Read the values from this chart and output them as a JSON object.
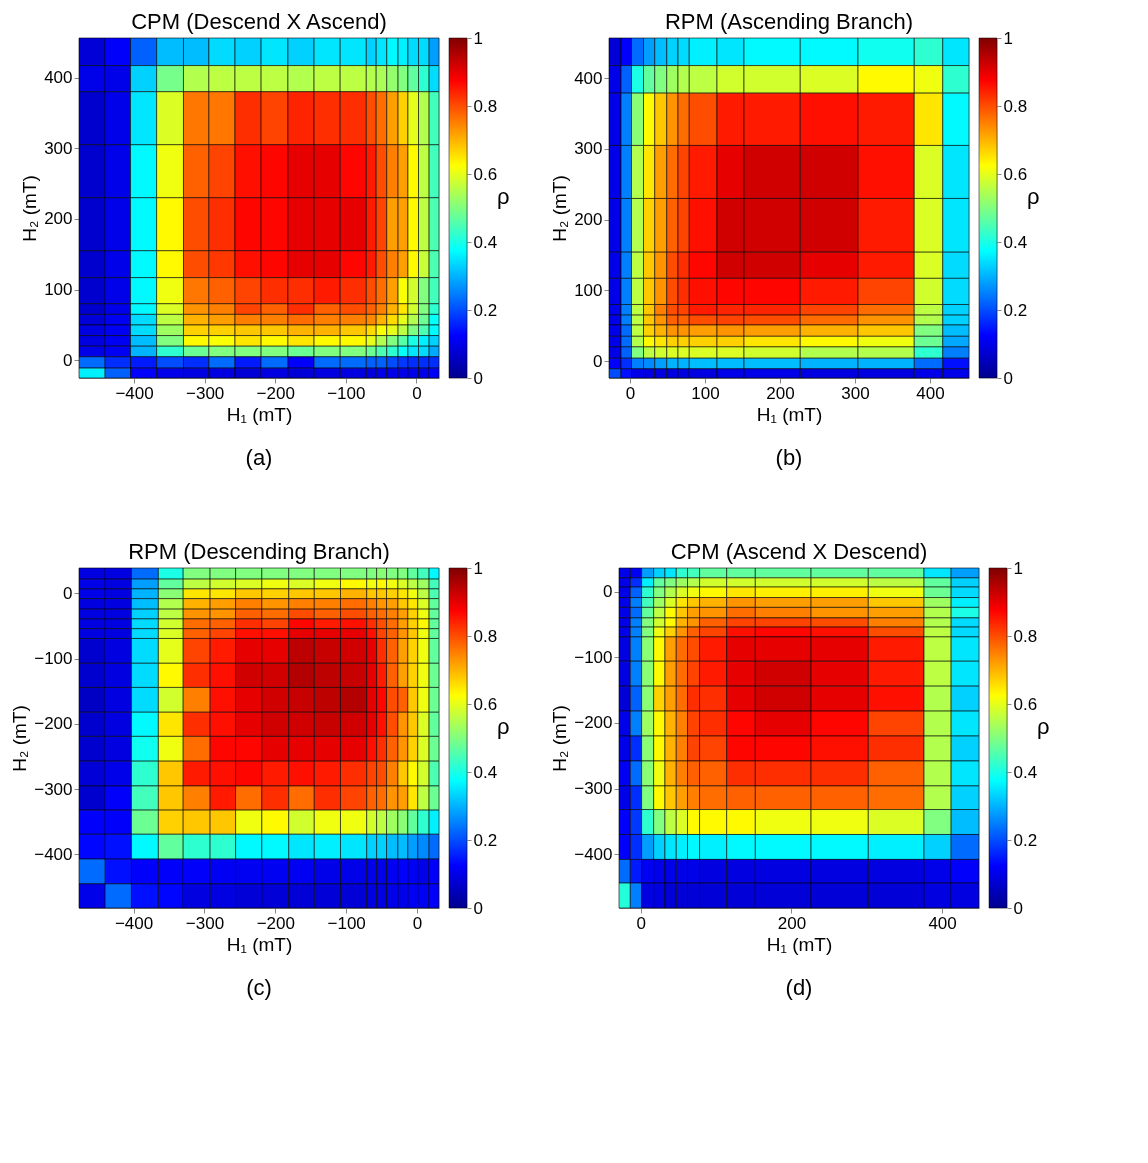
{
  "chart_data": [
    {
      "type": "heatmap",
      "title": "CPM (Descend X Ascend)",
      "xlabel": "H₁ (mT)",
      "ylabel": "H₂ (mT)",
      "clabel": "ρ",
      "annotations": [
        "(a)"
      ],
      "colors": [
        "#00008f",
        "#0000ff",
        "#0080ff",
        "#00ffff",
        "#80ff80",
        "#ffff00",
        "#ff8000",
        "#ff0000",
        "#800000"
      ],
      "clim": [
        0,
        1
      ],
      "cticks": [
        0,
        0.2,
        0.4,
        0.6,
        0.8,
        1
      ],
      "xlim": [
        -478,
        32
      ],
      "xticks": [
        -400,
        -300,
        -200,
        -100,
        0
      ],
      "ylim": [
        -25,
        456
      ],
      "yticks": [
        0,
        100,
        200,
        300,
        400
      ],
      "x": [
        -459.5,
        -423,
        -386.5,
        -349,
        -312,
        -275.5,
        -238.5,
        -201,
        -163.5,
        -126.5,
        -89.5,
        -64,
        -49.5,
        -34,
        -19,
        -4.5,
        10.5,
        25
      ],
      "y": [
        436.5,
        398.5,
        342.5,
        267.5,
        192.5,
        136,
        98.5,
        72.5,
        57.5,
        42.5,
        27.5,
        12.5,
        -3,
        -18
      ],
      "cells": [
        [
          0.08,
          0.12,
          0.22,
          0.31,
          0.31,
          0.34,
          0.33,
          0.35,
          0.33,
          0.35,
          0.35,
          0.33,
          0.35,
          0.37,
          0.36,
          0.34,
          0.34,
          0.28
        ],
        [
          0.1,
          0.1,
          0.33,
          0.49,
          0.55,
          0.56,
          0.56,
          0.56,
          0.55,
          0.56,
          0.56,
          0.55,
          0.54,
          0.52,
          0.5,
          0.47,
          0.42,
          0.34
        ],
        [
          0.07,
          0.1,
          0.35,
          0.59,
          0.76,
          0.76,
          0.83,
          0.81,
          0.84,
          0.83,
          0.83,
          0.8,
          0.77,
          0.72,
          0.67,
          0.6,
          0.55,
          0.44
        ],
        [
          0.07,
          0.1,
          0.37,
          0.61,
          0.78,
          0.81,
          0.86,
          0.87,
          0.9,
          0.9,
          0.87,
          0.85,
          0.8,
          0.75,
          0.72,
          0.63,
          0.56,
          0.44
        ],
        [
          0.07,
          0.1,
          0.37,
          0.63,
          0.8,
          0.83,
          0.87,
          0.87,
          0.9,
          0.9,
          0.9,
          0.85,
          0.81,
          0.72,
          0.72,
          0.63,
          0.56,
          0.45
        ],
        [
          0.07,
          0.1,
          0.37,
          0.63,
          0.8,
          0.82,
          0.86,
          0.87,
          0.9,
          0.9,
          0.87,
          0.85,
          0.8,
          0.75,
          0.72,
          0.63,
          0.57,
          0.45
        ],
        [
          0.07,
          0.1,
          0.37,
          0.61,
          0.76,
          0.78,
          0.81,
          0.83,
          0.83,
          0.85,
          0.83,
          0.8,
          0.77,
          0.72,
          0.62,
          0.58,
          0.5,
          0.44
        ],
        [
          0.07,
          0.1,
          0.37,
          0.59,
          0.73,
          0.75,
          0.81,
          0.78,
          0.83,
          0.78,
          0.8,
          0.78,
          0.75,
          0.7,
          0.65,
          0.58,
          0.5,
          0.42
        ],
        [
          0.08,
          0.11,
          0.34,
          0.56,
          0.7,
          0.72,
          0.75,
          0.75,
          0.77,
          0.75,
          0.75,
          0.74,
          0.7,
          0.66,
          0.6,
          0.55,
          0.48,
          0.38
        ],
        [
          0.09,
          0.11,
          0.34,
          0.53,
          0.67,
          0.67,
          0.68,
          0.68,
          0.7,
          0.7,
          0.68,
          0.66,
          0.62,
          0.6,
          0.56,
          0.5,
          0.45,
          0.37
        ],
        [
          0.09,
          0.11,
          0.31,
          0.5,
          0.63,
          0.62,
          0.65,
          0.63,
          0.65,
          0.63,
          0.63,
          0.6,
          0.55,
          0.5,
          0.46,
          0.4,
          0.36,
          0.33
        ],
        [
          0.1,
          0.11,
          0.3,
          0.42,
          0.48,
          0.5,
          0.5,
          0.5,
          0.48,
          0.5,
          0.5,
          0.48,
          0.45,
          0.42,
          0.38,
          0.35,
          0.34,
          0.29
        ],
        [
          0.23,
          0.17,
          0.15,
          0.2,
          0.17,
          0.23,
          0.15,
          0.23,
          0.12,
          0.23,
          0.23,
          0.22,
          0.22,
          0.2,
          0.18,
          0.17,
          0.17,
          0.17
        ],
        [
          0.36,
          0.22,
          0.12,
          0.1,
          0.09,
          0.09,
          0.08,
          0.09,
          0.08,
          0.09,
          0.09,
          0.09,
          0.1,
          0.1,
          0.1,
          0.1,
          0.1,
          0.12
        ]
      ]
    },
    {
      "type": "heatmap",
      "title": "RPM (Ascending Branch)",
      "xlabel": "H₁ (mT)",
      "ylabel": "H₂ (mT)",
      "clabel": "ρ",
      "annotations": [
        "(b)"
      ],
      "colors": [
        "#00008f",
        "#0000ff",
        "#0080ff",
        "#00ffff",
        "#80ff80",
        "#ffff00",
        "#ff8000",
        "#ff0000",
        "#800000"
      ],
      "clim": [
        0,
        1
      ],
      "cticks": [
        0,
        0.2,
        0.4,
        0.6,
        0.8,
        1
      ],
      "xlim": [
        -28,
        452
      ],
      "xticks": [
        0,
        100,
        200,
        300,
        400
      ],
      "ylim": [
        -24,
        457
      ],
      "yticks": [
        0,
        100,
        200,
        300,
        400
      ],
      "x": [
        -20,
        -5,
        10,
        25.5,
        41,
        56.5,
        71.5,
        97.5,
        134,
        189.5,
        265.5,
        341.5,
        398,
        434.5
      ],
      "y": [
        437.5,
        398.5,
        342,
        267.5,
        192,
        135.5,
        98.5,
        72.5,
        58,
        43,
        27.5,
        12,
        -3.5,
        -17.5
      ],
      "cells": [
        [
          0.08,
          0.12,
          0.23,
          0.28,
          0.31,
          0.33,
          0.34,
          0.36,
          0.35,
          0.37,
          0.37,
          0.39,
          0.42,
          0.35
        ],
        [
          0.1,
          0.22,
          0.4,
          0.47,
          0.5,
          0.53,
          0.55,
          0.56,
          0.58,
          0.58,
          0.59,
          0.63,
          0.61,
          0.42
        ],
        [
          0.1,
          0.25,
          0.51,
          0.63,
          0.68,
          0.73,
          0.77,
          0.8,
          0.85,
          0.85,
          0.86,
          0.85,
          0.65,
          0.37
        ],
        [
          0.1,
          0.25,
          0.55,
          0.65,
          0.72,
          0.77,
          0.81,
          0.85,
          0.9,
          0.92,
          0.92,
          0.86,
          0.59,
          0.35
        ],
        [
          0.1,
          0.25,
          0.55,
          0.67,
          0.72,
          0.78,
          0.81,
          0.86,
          0.92,
          0.92,
          0.92,
          0.85,
          0.59,
          0.35
        ],
        [
          0.1,
          0.25,
          0.56,
          0.68,
          0.73,
          0.8,
          0.83,
          0.87,
          0.92,
          0.92,
          0.9,
          0.85,
          0.59,
          0.34
        ],
        [
          0.1,
          0.25,
          0.56,
          0.68,
          0.73,
          0.8,
          0.83,
          0.86,
          0.87,
          0.87,
          0.85,
          0.81,
          0.58,
          0.34
        ],
        [
          0.1,
          0.25,
          0.56,
          0.68,
          0.75,
          0.8,
          0.81,
          0.85,
          0.84,
          0.84,
          0.81,
          0.77,
          0.56,
          0.33
        ],
        [
          0.1,
          0.25,
          0.56,
          0.68,
          0.73,
          0.78,
          0.78,
          0.8,
          0.81,
          0.8,
          0.77,
          0.73,
          0.55,
          0.33
        ],
        [
          0.1,
          0.23,
          0.56,
          0.67,
          0.7,
          0.73,
          0.73,
          0.72,
          0.73,
          0.72,
          0.7,
          0.68,
          0.5,
          0.31
        ],
        [
          0.1,
          0.23,
          0.55,
          0.63,
          0.65,
          0.67,
          0.67,
          0.67,
          0.67,
          0.65,
          0.63,
          0.61,
          0.48,
          0.29
        ],
        [
          0.1,
          0.22,
          0.5,
          0.56,
          0.58,
          0.59,
          0.59,
          0.59,
          0.59,
          0.58,
          0.55,
          0.55,
          0.42,
          0.25
        ],
        [
          0.12,
          0.17,
          0.25,
          0.26,
          0.28,
          0.3,
          0.3,
          0.31,
          0.31,
          0.31,
          0.3,
          0.3,
          0.23,
          0.14
        ],
        [
          0.2,
          0.14,
          0.1,
          0.09,
          0.09,
          0.09,
          0.09,
          0.09,
          0.1,
          0.1,
          0.09,
          0.09,
          0.1,
          0.1
        ]
      ]
    },
    {
      "type": "heatmap",
      "title": "RPM (Descending Branch)",
      "xlabel": "H₁ (mT)",
      "ylabel": "H₂ (mT)",
      "clabel": "ρ",
      "annotations": [
        "(c)"
      ],
      "colors": [
        "#00008f",
        "#0000ff",
        "#0080ff",
        "#00ffff",
        "#80ff80",
        "#ffff00",
        "#ff8000",
        "#ff0000",
        "#800000"
      ],
      "clim": [
        0,
        1
      ],
      "cticks": [
        0,
        0.2,
        0.4,
        0.6,
        0.8,
        1
      ],
      "xlim": [
        -477,
        31
      ],
      "xticks": [
        -400,
        -300,
        -200,
        -100,
        0
      ],
      "ylim": [
        -482,
        39
      ],
      "yticks": [
        -400,
        -300,
        -200,
        -100,
        0
      ],
      "x": [
        -458.5,
        -421.5,
        -384,
        -347.5,
        -311,
        -274,
        -237.5,
        -200,
        -163,
        -126.5,
        -89.5,
        -64,
        -50,
        -35,
        -20,
        -6,
        9,
        24
      ],
      "y": [
        30.5,
        14.5,
        -0.5,
        -16,
        -31.5,
        -46.5,
        -61.5,
        -88,
        -125.5,
        -163,
        -200.5,
        -238,
        -276,
        -313.5,
        -350.5,
        -388,
        -426,
        -463.5
      ],
      "cells": [
        [
          0.09,
          0.09,
          0.23,
          0.4,
          0.5,
          0.5,
          0.5,
          0.5,
          0.5,
          0.5,
          0.5,
          0.5,
          0.51,
          0.5,
          0.5,
          0.47,
          0.44,
          0.37
        ],
        [
          0.1,
          0.09,
          0.28,
          0.47,
          0.56,
          0.58,
          0.59,
          0.61,
          0.59,
          0.61,
          0.63,
          0.61,
          0.63,
          0.61,
          0.59,
          0.56,
          0.53,
          0.44
        ],
        [
          0.1,
          0.09,
          0.3,
          0.51,
          0.65,
          0.65,
          0.68,
          0.67,
          0.68,
          0.68,
          0.7,
          0.68,
          0.68,
          0.67,
          0.65,
          0.61,
          0.56,
          0.45
        ],
        [
          0.09,
          0.09,
          0.31,
          0.55,
          0.7,
          0.72,
          0.75,
          0.73,
          0.75,
          0.75,
          0.77,
          0.75,
          0.73,
          0.72,
          0.68,
          0.65,
          0.59,
          0.47
        ],
        [
          0.09,
          0.09,
          0.33,
          0.56,
          0.73,
          0.73,
          0.78,
          0.77,
          0.8,
          0.78,
          0.8,
          0.78,
          0.77,
          0.75,
          0.72,
          0.67,
          0.61,
          0.47
        ],
        [
          0.09,
          0.09,
          0.34,
          0.58,
          0.77,
          0.78,
          0.83,
          0.81,
          0.87,
          0.85,
          0.86,
          0.83,
          0.8,
          0.77,
          0.72,
          0.67,
          0.63,
          0.47
        ],
        [
          0.09,
          0.09,
          0.34,
          0.59,
          0.78,
          0.81,
          0.86,
          0.86,
          0.9,
          0.9,
          0.9,
          0.86,
          0.81,
          0.78,
          0.73,
          0.68,
          0.61,
          0.47
        ],
        [
          0.07,
          0.09,
          0.34,
          0.6,
          0.81,
          0.85,
          0.9,
          0.9,
          0.94,
          0.93,
          0.92,
          0.9,
          0.83,
          0.78,
          0.72,
          0.67,
          0.61,
          0.47
        ],
        [
          0.07,
          0.09,
          0.34,
          0.63,
          0.83,
          0.86,
          0.92,
          0.92,
          0.95,
          0.94,
          0.93,
          0.9,
          0.85,
          0.78,
          0.72,
          0.67,
          0.61,
          0.48
        ],
        [
          0.06,
          0.09,
          0.34,
          0.58,
          0.75,
          0.86,
          0.9,
          0.92,
          0.93,
          0.94,
          0.95,
          0.9,
          0.87,
          0.8,
          0.78,
          0.68,
          0.61,
          0.48
        ],
        [
          0.07,
          0.09,
          0.37,
          0.65,
          0.83,
          0.86,
          0.9,
          0.92,
          0.92,
          0.93,
          0.92,
          0.9,
          0.86,
          0.8,
          0.73,
          0.68,
          0.59,
          0.47
        ],
        [
          0.07,
          0.09,
          0.39,
          0.61,
          0.77,
          0.87,
          0.87,
          0.9,
          0.9,
          0.9,
          0.9,
          0.86,
          0.83,
          0.78,
          0.73,
          0.67,
          0.59,
          0.48
        ],
        [
          0.08,
          0.1,
          0.42,
          0.68,
          0.85,
          0.86,
          0.87,
          0.85,
          0.86,
          0.85,
          0.83,
          0.81,
          0.8,
          0.75,
          0.68,
          0.63,
          0.58,
          0.45
        ],
        [
          0.07,
          0.12,
          0.44,
          0.68,
          0.75,
          0.85,
          0.77,
          0.83,
          0.77,
          0.83,
          0.81,
          0.78,
          0.77,
          0.73,
          0.72,
          0.65,
          0.56,
          0.48
        ],
        [
          0.12,
          0.12,
          0.48,
          0.67,
          0.68,
          0.68,
          0.61,
          0.63,
          0.58,
          0.61,
          0.61,
          0.58,
          0.56,
          0.53,
          0.51,
          0.47,
          0.42,
          0.36
        ],
        [
          0.13,
          0.14,
          0.37,
          0.47,
          0.42,
          0.42,
          0.37,
          0.37,
          0.35,
          0.36,
          0.35,
          0.33,
          0.33,
          0.31,
          0.31,
          0.28,
          0.26,
          0.23
        ],
        [
          0.23,
          0.14,
          0.12,
          0.12,
          0.12,
          0.11,
          0.11,
          0.11,
          0.11,
          0.1,
          0.1,
          0.1,
          0.1,
          0.11,
          0.12,
          0.11,
          0.1,
          0.12
        ],
        [
          0.1,
          0.23,
          0.14,
          0.13,
          0.09,
          0.09,
          0.08,
          0.08,
          0.08,
          0.08,
          0.08,
          0.09,
          0.09,
          0.1,
          0.1,
          0.11,
          0.11,
          0.12
        ]
      ]
    },
    {
      "type": "heatmap",
      "title": "CPM (Ascend X Descend)",
      "xlabel": "H₁ (mT)",
      "ylabel": "H₂ (mT)",
      "clabel": "ρ",
      "annotations": [
        "(d)"
      ],
      "colors": [
        "#00008f",
        "#0000ff",
        "#0080ff",
        "#00ffff",
        "#80ff80",
        "#ffff00",
        "#ff8000",
        "#ff0000",
        "#800000"
      ],
      "clim": [
        0,
        1
      ],
      "cticks": [
        0,
        0.2,
        0.4,
        0.6,
        0.8,
        1
      ],
      "xlim": [
        -29,
        449
      ],
      "xticks": [
        0,
        200,
        400
      ],
      "ylim": [
        -482,
        36
      ],
      "yticks": [
        -400,
        -300,
        -200,
        -100,
        0
      ],
      "x": [
        -21.5,
        -6.5,
        9,
        24.5,
        39.5,
        54.5,
        70,
        96,
        133,
        189,
        264,
        339,
        394,
        430.5
      ],
      "y": [
        28.5,
        14,
        -1,
        -16.5,
        -32,
        -47,
        -61.5,
        -87.5,
        -125,
        -163,
        -201,
        -239,
        -277,
        -314,
        -351,
        -389,
        -426,
        -463
      ],
      "cells": [
        [
          0.1,
          0.11,
          0.28,
          0.33,
          0.35,
          0.42,
          0.44,
          0.47,
          0.47,
          0.47,
          0.47,
          0.47,
          0.35,
          0.28
        ],
        [
          0.1,
          0.17,
          0.36,
          0.47,
          0.5,
          0.53,
          0.55,
          0.58,
          0.58,
          0.58,
          0.58,
          0.56,
          0.47,
          0.33
        ],
        [
          0.1,
          0.22,
          0.42,
          0.5,
          0.55,
          0.59,
          0.61,
          0.63,
          0.65,
          0.64,
          0.64,
          0.61,
          0.48,
          0.34
        ],
        [
          0.1,
          0.25,
          0.44,
          0.53,
          0.59,
          0.65,
          0.68,
          0.7,
          0.73,
          0.72,
          0.72,
          0.68,
          0.53,
          0.36
        ],
        [
          0.1,
          0.23,
          0.47,
          0.56,
          0.63,
          0.68,
          0.72,
          0.73,
          0.77,
          0.75,
          0.73,
          0.72,
          0.55,
          0.4
        ],
        [
          0.1,
          0.25,
          0.5,
          0.58,
          0.63,
          0.7,
          0.73,
          0.78,
          0.81,
          0.81,
          0.8,
          0.75,
          0.55,
          0.34
        ],
        [
          0.1,
          0.25,
          0.5,
          0.61,
          0.67,
          0.73,
          0.78,
          0.81,
          0.86,
          0.87,
          0.86,
          0.8,
          0.56,
          0.34
        ],
        [
          0.09,
          0.25,
          0.51,
          0.63,
          0.72,
          0.77,
          0.8,
          0.85,
          0.9,
          0.9,
          0.9,
          0.85,
          0.56,
          0.35
        ],
        [
          0.09,
          0.25,
          0.51,
          0.63,
          0.72,
          0.77,
          0.81,
          0.85,
          0.9,
          0.92,
          0.9,
          0.85,
          0.56,
          0.35
        ],
        [
          0.08,
          0.22,
          0.51,
          0.67,
          0.72,
          0.77,
          0.83,
          0.83,
          0.9,
          0.92,
          0.9,
          0.86,
          0.55,
          0.33
        ],
        [
          0.1,
          0.25,
          0.53,
          0.63,
          0.7,
          0.75,
          0.81,
          0.83,
          0.87,
          0.9,
          0.87,
          0.81,
          0.55,
          0.35
        ],
        [
          0.1,
          0.17,
          0.51,
          0.63,
          0.7,
          0.75,
          0.81,
          0.81,
          0.87,
          0.87,
          0.86,
          0.83,
          0.55,
          0.33
        ],
        [
          0.11,
          0.23,
          0.51,
          0.61,
          0.7,
          0.75,
          0.78,
          0.78,
          0.83,
          0.83,
          0.83,
          0.78,
          0.55,
          0.35
        ],
        [
          0.1,
          0.17,
          0.5,
          0.63,
          0.68,
          0.72,
          0.75,
          0.77,
          0.78,
          0.78,
          0.78,
          0.77,
          0.55,
          0.33
        ],
        [
          0.12,
          0.18,
          0.42,
          0.5,
          0.56,
          0.59,
          0.63,
          0.63,
          0.63,
          0.61,
          0.61,
          0.59,
          0.5,
          0.31
        ],
        [
          0.12,
          0.17,
          0.28,
          0.33,
          0.35,
          0.36,
          0.37,
          0.36,
          0.37,
          0.37,
          0.37,
          0.36,
          0.33,
          0.23
        ],
        [
          0.23,
          0.15,
          0.11,
          0.1,
          0.1,
          0.1,
          0.1,
          0.09,
          0.09,
          0.09,
          0.09,
          0.09,
          0.1,
          0.12
        ],
        [
          0.41,
          0.25,
          0.09,
          0.09,
          0.08,
          0.08,
          0.08,
          0.08,
          0.08,
          0.08,
          0.08,
          0.08,
          0.09,
          0.09
        ]
      ]
    }
  ]
}
